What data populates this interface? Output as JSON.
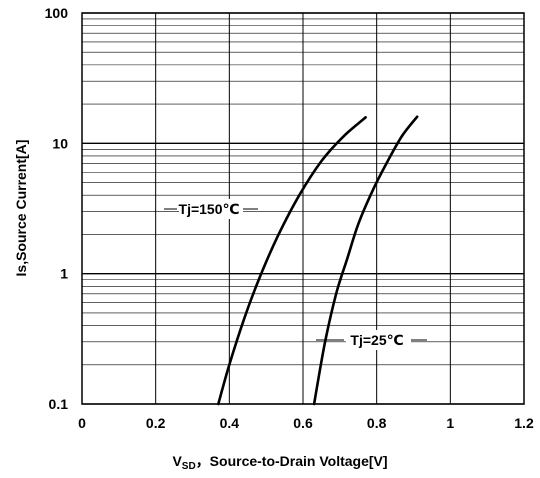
{
  "chart_data": {
    "type": "line",
    "xlabel_main": "V",
    "xlabel_sub": "SD",
    "xlabel_rest": "，Source-to-Drain Voltage[V]",
    "ylabel": "Is,Source Current[A]",
    "x_ticks": [
      "0",
      "0.2",
      "0.4",
      "0.6",
      "0.8",
      "1",
      "1.2"
    ],
    "x_tick_values": [
      0,
      0.2,
      0.4,
      0.6,
      0.8,
      1.0,
      1.2
    ],
    "y_ticks": [
      "0.1",
      "1",
      "10",
      "100"
    ],
    "y_tick_values": [
      0.1,
      1,
      10,
      100
    ],
    "xlim": [
      0,
      1.2
    ],
    "ylim": [
      0.1,
      100
    ],
    "yscale": "log",
    "grid": true,
    "series": [
      {
        "name": "Tj=150℃",
        "color": "#000000",
        "x": [
          0.37,
          0.4,
          0.44,
          0.48,
          0.53,
          0.59,
          0.65,
          0.71,
          0.77
        ],
        "y": [
          0.1,
          0.2,
          0.45,
          0.9,
          1.9,
          4.0,
          7.3,
          11.3,
          15.8
        ]
      },
      {
        "name": "Tj=25℃",
        "color": "#000000",
        "x": [
          0.63,
          0.66,
          0.69,
          0.72,
          0.75,
          0.79,
          0.83,
          0.87,
          0.91
        ],
        "y": [
          0.1,
          0.3,
          0.7,
          1.3,
          2.4,
          4.4,
          7.3,
          11.5,
          16.0
        ]
      }
    ]
  }
}
